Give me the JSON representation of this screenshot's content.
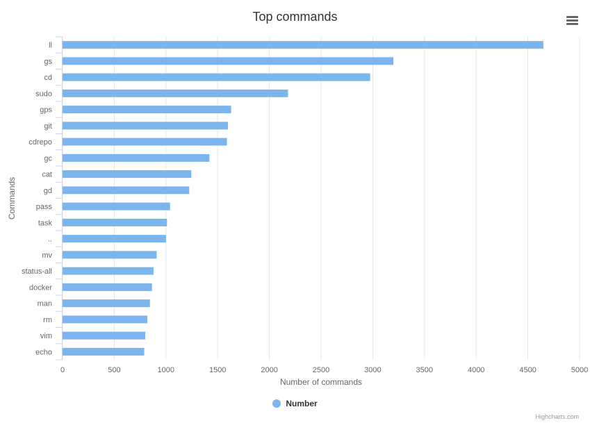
{
  "chart_data": {
    "type": "bar",
    "orientation": "horizontal",
    "title": "Top commands",
    "xlabel": "Number of commands",
    "ylabel": "Commands",
    "categories": [
      "ll",
      "gs",
      "cd",
      "sudo",
      "gps",
      "git",
      "cdrepo",
      "gc",
      "cat",
      "gd",
      "pass",
      "task",
      "..",
      "mv",
      "status-all",
      "docker",
      "man",
      "rm",
      "vim",
      "echo"
    ],
    "series": [
      {
        "name": "Number",
        "values": [
          4650,
          3200,
          2975,
          2180,
          1630,
          1600,
          1590,
          1420,
          1245,
          1225,
          1040,
          1010,
          1000,
          910,
          880,
          865,
          845,
          820,
          800,
          790
        ]
      }
    ],
    "xlim": [
      0,
      5000
    ],
    "ticks": [
      "0",
      "500",
      "1000",
      "1500",
      "2000",
      "2500",
      "3000",
      "3500",
      "4000",
      "4500",
      "5000"
    ],
    "grid": true,
    "legend_position": "bottom-center",
    "color": "#7cb5ec"
  },
  "credits": "Highcharts.com",
  "menu_icon": "hamburger-menu-icon"
}
